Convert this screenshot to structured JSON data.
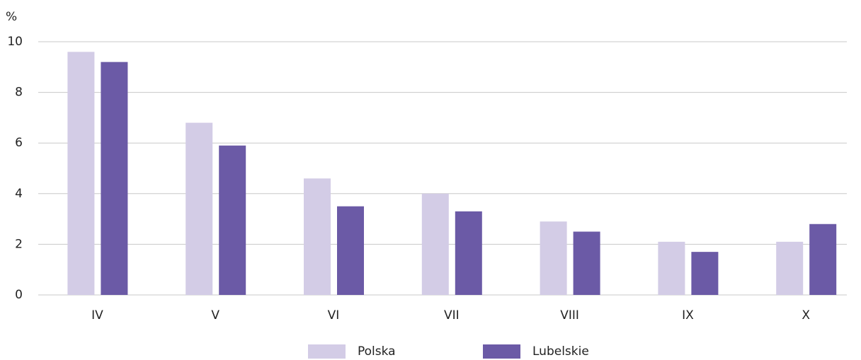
{
  "chart_data": {
    "type": "bar",
    "ylabel": "%",
    "categories": [
      "IV",
      "V",
      "VI",
      "VII",
      "VIII",
      "IX",
      "X"
    ],
    "series": [
      {
        "name": "Polska",
        "color": "#d3cce6",
        "values": [
          9.6,
          6.8,
          4.6,
          4.0,
          2.9,
          2.1,
          2.1
        ]
      },
      {
        "name": "Lubelskie",
        "color": "#6b5aa6",
        "values": [
          9.2,
          5.9,
          3.5,
          3.3,
          2.5,
          1.7,
          2.8
        ]
      }
    ],
    "ylim": [
      0,
      10
    ],
    "yticks": [
      0,
      2,
      4,
      6,
      8,
      10
    ],
    "grid": true,
    "legend": "bottom"
  }
}
